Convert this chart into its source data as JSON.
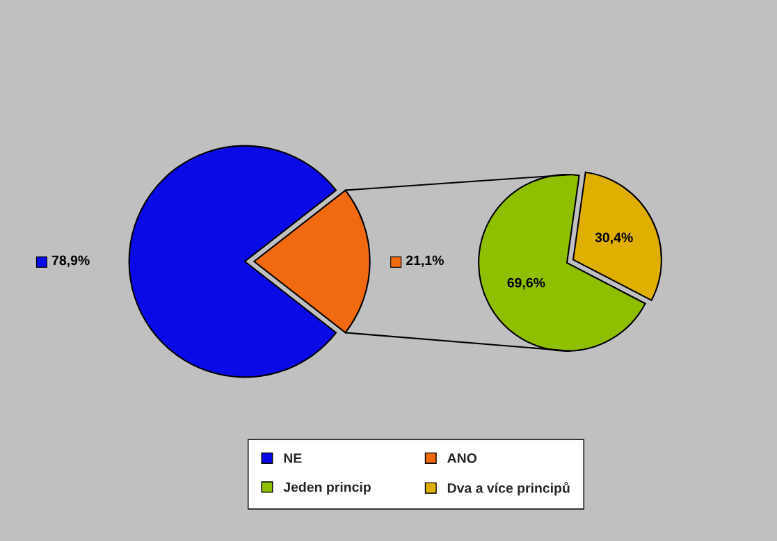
{
  "chart_data": [
    {
      "type": "pie",
      "categories": [
        "NE",
        "ANO"
      ],
      "values": [
        78.9,
        21.1
      ],
      "colors": [
        "#0a0ae6",
        "#f26a10"
      ],
      "value_labels": [
        "78,9%",
        "21,1%"
      ],
      "legend": "bottom"
    },
    {
      "type": "pie",
      "categories": [
        "Jeden princip",
        "Dva a více principů"
      ],
      "values": [
        69.6,
        30.4
      ],
      "colors": [
        "#8fc000",
        "#e0b000"
      ],
      "value_labels": [
        "69,6%",
        "30,4%"
      ],
      "legend": "bottom"
    }
  ]
}
